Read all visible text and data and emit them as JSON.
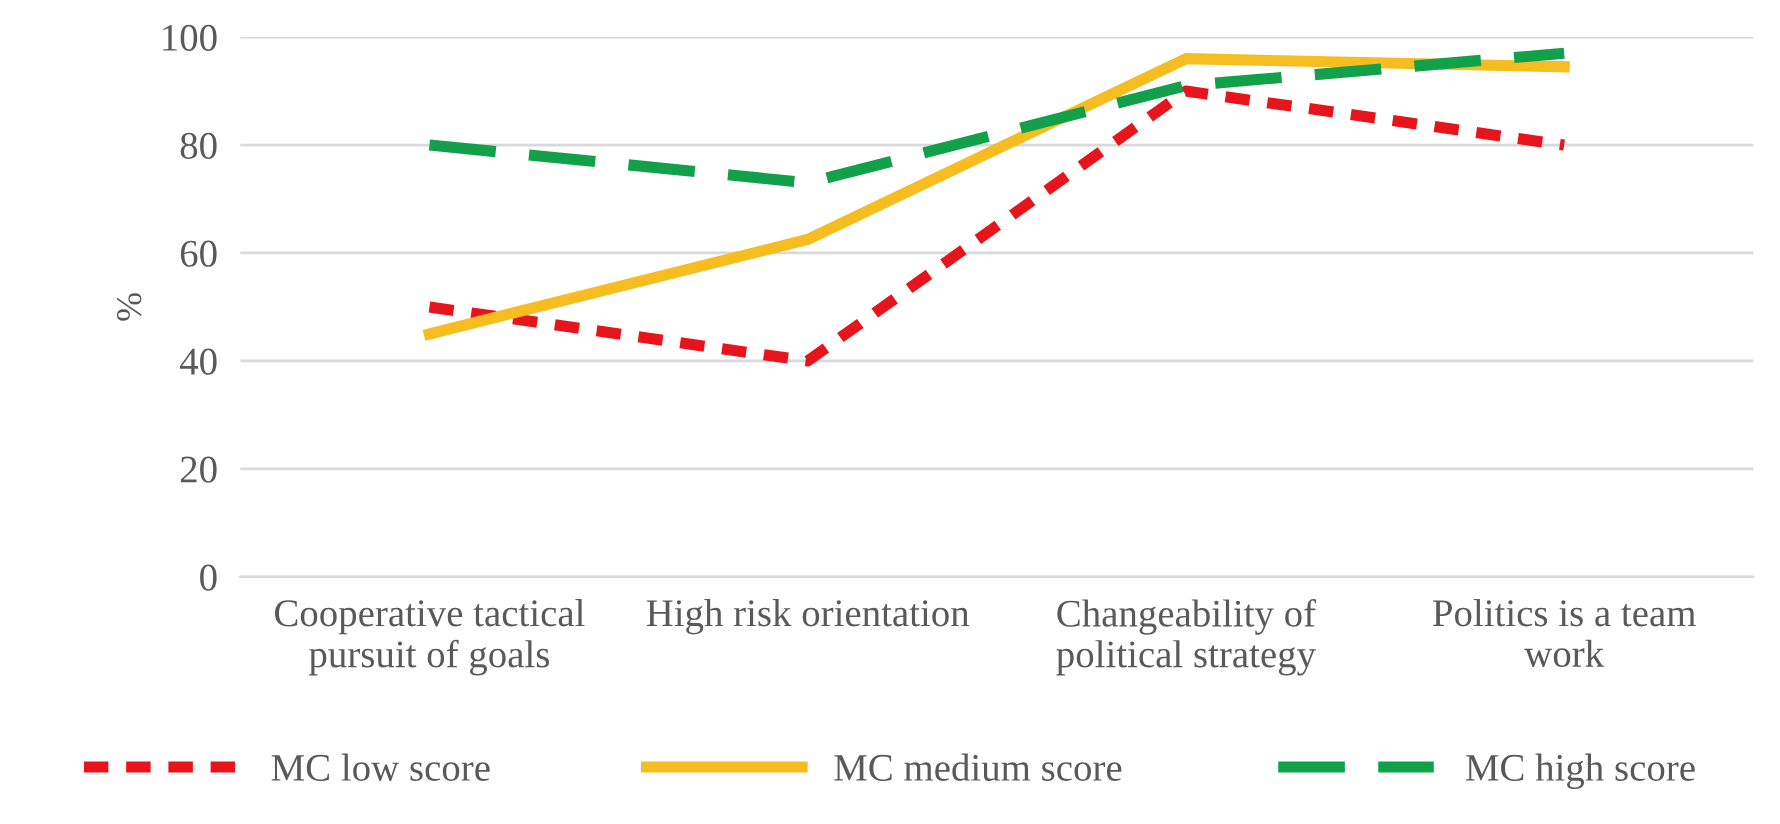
{
  "chart_data": {
    "type": "line",
    "ylabel": "%",
    "categories": [
      "Cooperative tactical\npursuit of goals",
      "High risk orientation",
      "Changeability of\npolitical strategy",
      "Politics is a team\nwork"
    ],
    "series": [
      {
        "name": "MC low score",
        "color": "#e8141b",
        "line_style": "dotted",
        "values": [
          50,
          40,
          90,
          80
        ]
      },
      {
        "name": "MC medium score",
        "color": "#f5bd1f",
        "line_style": "solid",
        "values": [
          45,
          62.5,
          96,
          94.5
        ]
      },
      {
        "name": "MC high score",
        "color": "#12a04b",
        "line_style": "dashed",
        "values": [
          80,
          73,
          91,
          97
        ]
      }
    ],
    "ylim": [
      0,
      100
    ],
    "yticks": [
      0,
      20,
      40,
      60,
      80,
      100
    ],
    "grid": "y",
    "legend": "bottom"
  }
}
